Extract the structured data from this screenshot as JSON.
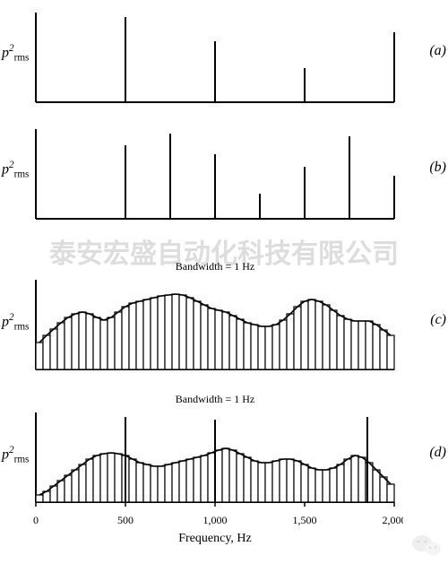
{
  "figure": {
    "xmin": 0,
    "xmax": 2000,
    "xticks": [
      0,
      500,
      1000,
      1500,
      2000
    ],
    "xlabel": "Frequency, Hz",
    "xlabel_fontsize": 14,
    "tick_fontsize": 12,
    "axis_color": "#000000",
    "axis_width": 2,
    "line_color": "#000000",
    "line_width": 2,
    "fill_color": "#ffffff",
    "background_color": "#ffffff"
  },
  "panels": {
    "a": {
      "label": "(a)",
      "ylabel_html": "p<sup>2</sup><span class='sub'>rms</span>",
      "ylabel_fontsize": 14,
      "type": "spectral-lines",
      "ymax": 100,
      "lines": [
        {
          "x": 500,
          "h": 95
        },
        {
          "x": 1000,
          "h": 68
        },
        {
          "x": 1500,
          "h": 38
        },
        {
          "x": 2000,
          "h": 78
        }
      ]
    },
    "b": {
      "label": "(b)",
      "ylabel_html": "p<sup>2</sup><span class='sub'>rms</span>",
      "ylabel_fontsize": 14,
      "type": "spectral-lines",
      "ymax": 100,
      "lines": [
        {
          "x": 500,
          "h": 82
        },
        {
          "x": 750,
          "h": 95
        },
        {
          "x": 1000,
          "h": 72
        },
        {
          "x": 1250,
          "h": 28
        },
        {
          "x": 1500,
          "h": 58
        },
        {
          "x": 1750,
          "h": 92
        },
        {
          "x": 2000,
          "h": 48
        }
      ]
    },
    "c": {
      "label": "(c)",
      "ylabel_html": "p<sup>2</sup><span class='sub'>rms</span>",
      "ylabel_fontsize": 14,
      "type": "broadband",
      "annotation": "Bandwidth = 1 Hz",
      "annotation_fontsize": 12,
      "ymax": 100,
      "n_bars": 50,
      "envelope": [
        30,
        38,
        45,
        52,
        58,
        62,
        64,
        62,
        58,
        55,
        58,
        64,
        70,
        74,
        76,
        78,
        80,
        82,
        83,
        84,
        83,
        80,
        76,
        72,
        68,
        66,
        64,
        60,
        56,
        52,
        50,
        48,
        48,
        50,
        55,
        62,
        70,
        76,
        78,
        76,
        72,
        66,
        60,
        56,
        54,
        54,
        54,
        50,
        44,
        38
      ],
      "tall_lines": []
    },
    "d": {
      "label": "(d)",
      "ylabel_html": "p<sup>2</sup><span class='sub'>rms</span>",
      "ylabel_fontsize": 14,
      "type": "broadband+lines",
      "annotation": "Bandwidth = 1 Hz",
      "annotation_fontsize": 12,
      "ymax": 100,
      "n_bars": 50,
      "envelope": [
        8,
        12,
        18,
        24,
        30,
        36,
        42,
        48,
        52,
        54,
        55,
        54,
        52,
        48,
        44,
        42,
        40,
        40,
        42,
        44,
        46,
        48,
        50,
        52,
        55,
        58,
        60,
        58,
        54,
        50,
        46,
        44,
        44,
        46,
        48,
        48,
        46,
        42,
        38,
        36,
        36,
        38,
        42,
        48,
        52,
        50,
        44,
        36,
        28,
        20
      ],
      "tall_lines": [
        {
          "x": 500,
          "h": 95
        },
        {
          "x": 1000,
          "h": 92
        },
        {
          "x": 1850,
          "h": 95
        }
      ]
    }
  },
  "watermark": {
    "text": "泰安宏盛自动化科技有限公司",
    "color": "#c8c8c8",
    "fontsize": 30
  }
}
